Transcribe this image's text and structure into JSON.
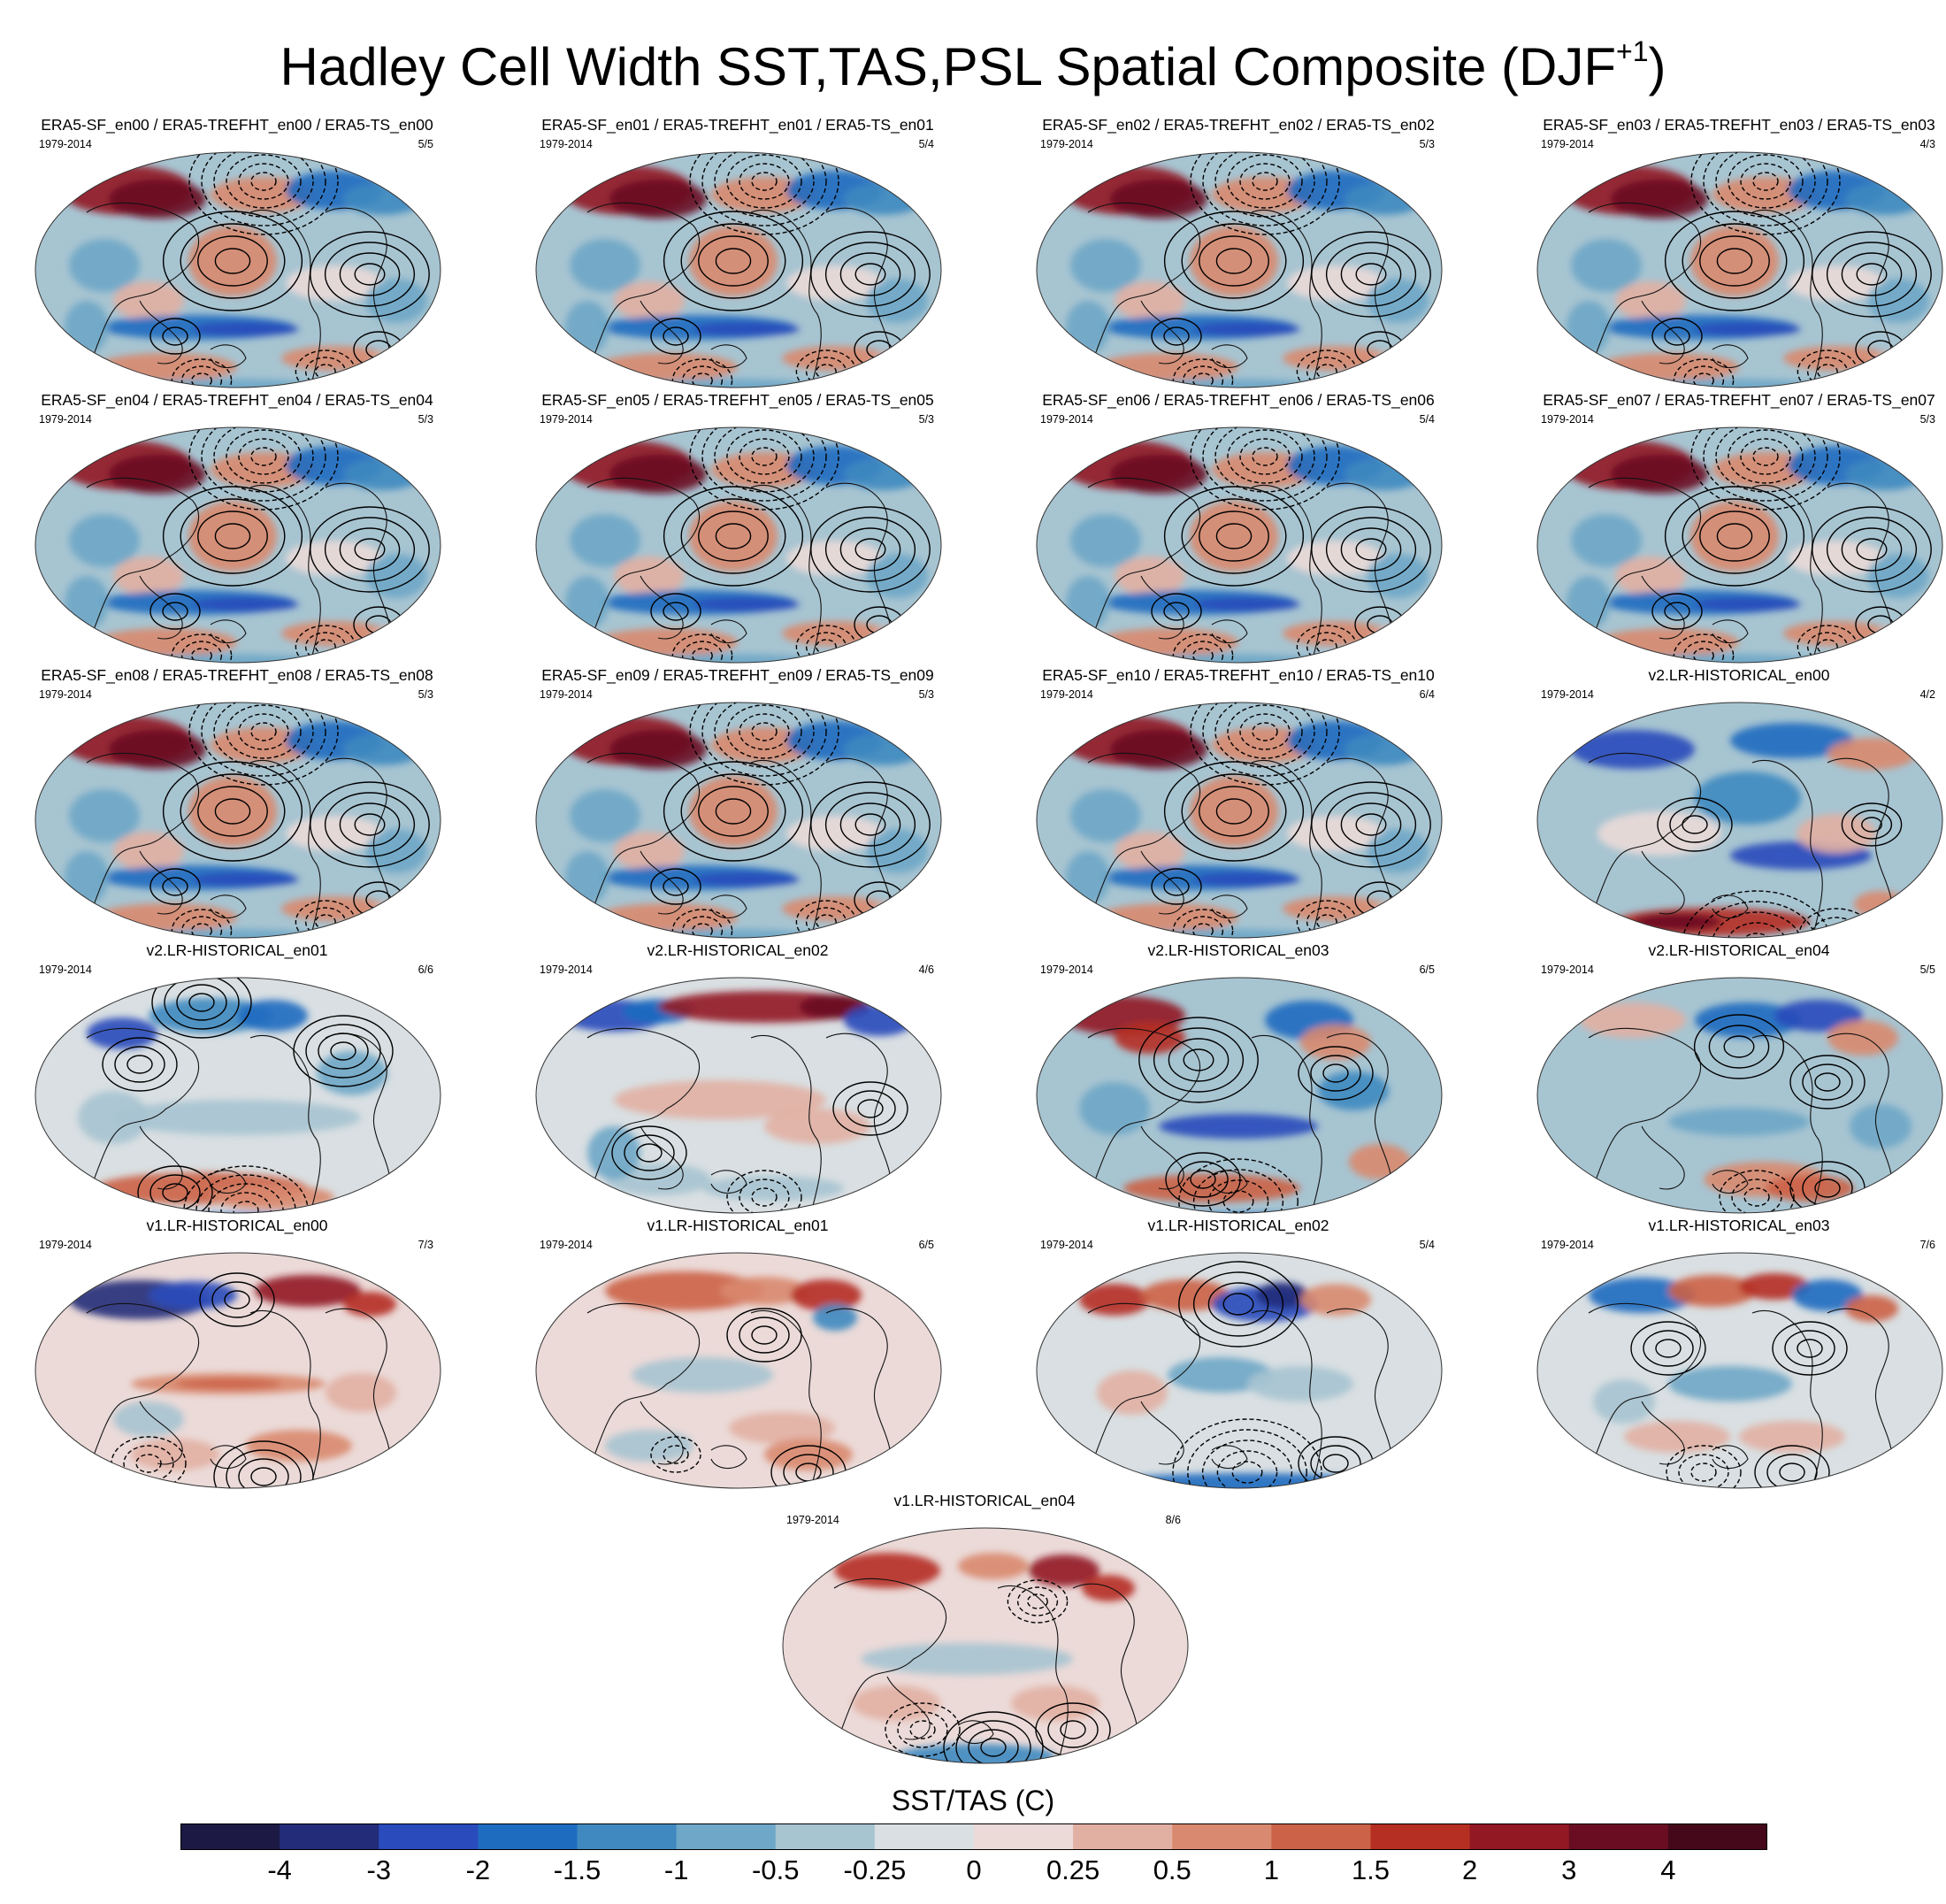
{
  "title_main": "Hadley Cell Width SST,TAS,PSL Spatial Composite (DJF",
  "title_sup": "+1",
  "title_end": ")",
  "panels": [
    {
      "title": "ERA5-SF_en00 / ERA5-TREFHT_en00 / ERA5-TS_en00",
      "years": "1979-2014",
      "ratio": "5/5",
      "style": "era5"
    },
    {
      "title": "ERA5-SF_en01 / ERA5-TREFHT_en01 / ERA5-TS_en01",
      "years": "1979-2014",
      "ratio": "5/4",
      "style": "era5"
    },
    {
      "title": "ERA5-SF_en02 / ERA5-TREFHT_en02 / ERA5-TS_en02",
      "years": "1979-2014",
      "ratio": "5/3",
      "style": "era5"
    },
    {
      "title": "ERA5-SF_en03 / ERA5-TREFHT_en03 / ERA5-TS_en03",
      "years": "1979-2014",
      "ratio": "4/3",
      "style": "era5"
    },
    {
      "title": "ERA5-SF_en04 / ERA5-TREFHT_en04 / ERA5-TS_en04",
      "years": "1979-2014",
      "ratio": "5/3",
      "style": "era5"
    },
    {
      "title": "ERA5-SF_en05 / ERA5-TREFHT_en05 / ERA5-TS_en05",
      "years": "1979-2014",
      "ratio": "5/3",
      "style": "era5"
    },
    {
      "title": "ERA5-SF_en06 / ERA5-TREFHT_en06 / ERA5-TS_en06",
      "years": "1979-2014",
      "ratio": "5/4",
      "style": "era5"
    },
    {
      "title": "ERA5-SF_en07 / ERA5-TREFHT_en07 / ERA5-TS_en07",
      "years": "1979-2014",
      "ratio": "5/3",
      "style": "era5"
    },
    {
      "title": "ERA5-SF_en08 / ERA5-TREFHT_en08 / ERA5-TS_en08",
      "years": "1979-2014",
      "ratio": "5/3",
      "style": "era5"
    },
    {
      "title": "ERA5-SF_en09 / ERA5-TREFHT_en09 / ERA5-TS_en09",
      "years": "1979-2014",
      "ratio": "5/3",
      "style": "era5"
    },
    {
      "title": "ERA5-SF_en10 / ERA5-TREFHT_en10 / ERA5-TS_en10",
      "years": "1979-2014",
      "ratio": "6/4",
      "style": "era5"
    },
    {
      "title": "v2.LR-HISTORICAL_en00",
      "years": "1979-2014",
      "ratio": "4/2",
      "style": "v2a"
    },
    {
      "title": "v2.LR-HISTORICAL_en01",
      "years": "1979-2014",
      "ratio": "6/6",
      "style": "v2b"
    },
    {
      "title": "v2.LR-HISTORICAL_en02",
      "years": "1979-2014",
      "ratio": "4/6",
      "style": "v2c"
    },
    {
      "title": "v2.LR-HISTORICAL_en03",
      "years": "1979-2014",
      "ratio": "6/5",
      "style": "v2d"
    },
    {
      "title": "v2.LR-HISTORICAL_en04",
      "years": "1979-2014",
      "ratio": "5/5",
      "style": "v2e"
    },
    {
      "title": "v1.LR-HISTORICAL_en00",
      "years": "1979-2014",
      "ratio": "7/3",
      "style": "v1a"
    },
    {
      "title": "v1.LR-HISTORICAL_en01",
      "years": "1979-2014",
      "ratio": "6/5",
      "style": "v1b"
    },
    {
      "title": "v1.LR-HISTORICAL_en02",
      "years": "1979-2014",
      "ratio": "5/4",
      "style": "v1c"
    },
    {
      "title": "v1.LR-HISTORICAL_en03",
      "years": "1979-2014",
      "ratio": "7/6",
      "style": "v1d"
    },
    {
      "title": "v1.LR-HISTORICAL_en04",
      "years": "1979-2014",
      "ratio": "8/6",
      "style": "v1e"
    }
  ],
  "colorbar": {
    "label": "SST/TAS (C)",
    "colors": [
      "#1c1a44",
      "#232c79",
      "#2a4bbb",
      "#1e6cc0",
      "#3f89c0",
      "#6ea7c7",
      "#a7c4d1",
      "#d9dfe2",
      "#ebdad8",
      "#e2b0a3",
      "#d9896f",
      "#cc6247",
      "#b52f22",
      "#921823",
      "#6a0d22",
      "#44081a"
    ],
    "ticks": [
      "-4",
      "-3",
      "-2",
      "-1.5",
      "-1",
      "-0.5",
      "-0.25",
      "0",
      "0.25",
      "0.5",
      "1",
      "1.5",
      "2",
      "3",
      "4"
    ]
  }
}
